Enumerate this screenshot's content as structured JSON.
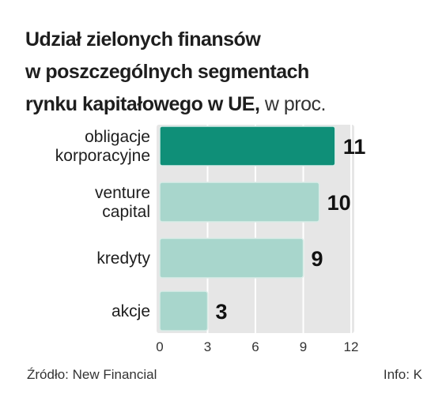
{
  "chart_data": {
    "type": "bar",
    "orientation": "horizontal",
    "title_line1": "Udział zielonych finansów",
    "title_line2": "w poszczególnych segmentach",
    "title_line3_bold": "rynku kapitałowego w UE,",
    "title_unit": "w proc.",
    "categories": [
      [
        "obligacje",
        "korporacyjne"
      ],
      [
        "venture",
        "capital"
      ],
      [
        "kredyty"
      ],
      [
        "akcje"
      ]
    ],
    "values": [
      11,
      10,
      9,
      3
    ],
    "xlim": [
      0,
      12
    ],
    "xticks": [
      0,
      3,
      6,
      9,
      12
    ],
    "grid": true,
    "colors": {
      "highlight": "#0f8f78",
      "bar": "#a8d6cc",
      "panel": "#e6e6e6",
      "grid": "#ffffff"
    }
  },
  "footer": {
    "source": "Źródło: New Financial",
    "credit": "Info: K"
  }
}
